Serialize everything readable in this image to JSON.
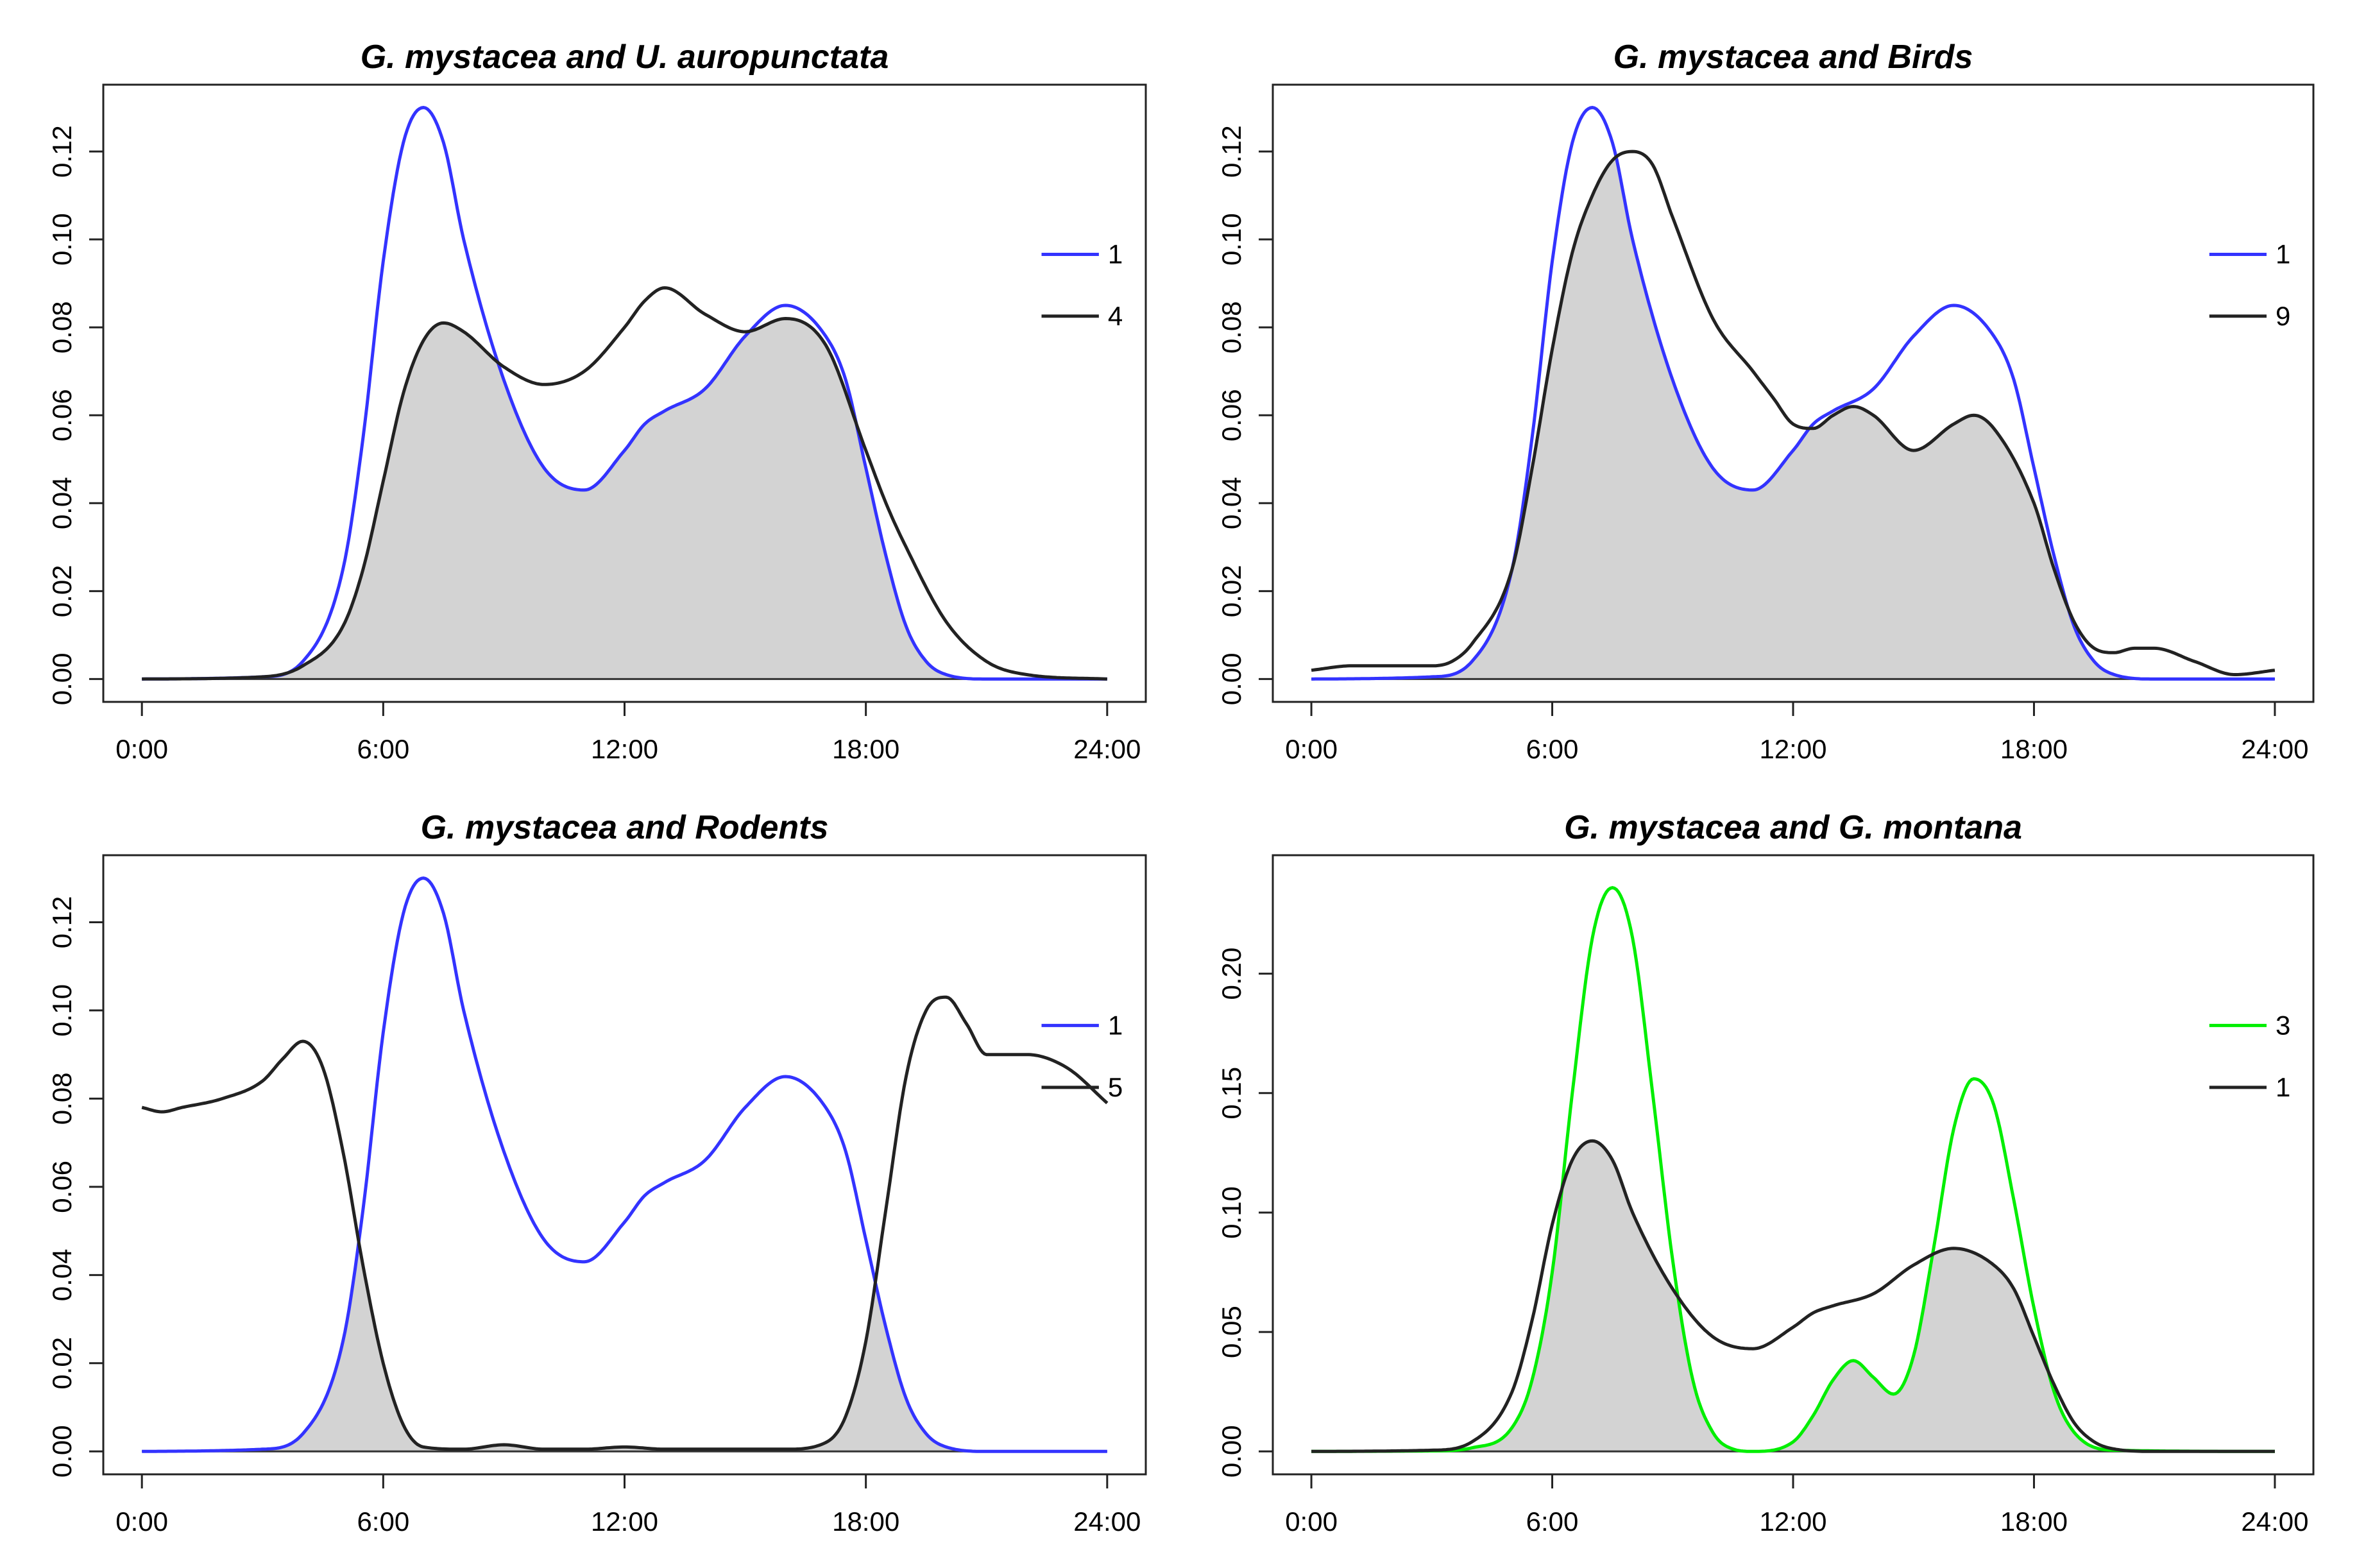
{
  "chart_data": [
    {
      "type": "area",
      "title": "G. mystacea and U. auropunctata",
      "xlabel": "",
      "ylabel": "",
      "xlim": [
        0,
        24
      ],
      "ylim": [
        0,
        0.13
      ],
      "xticks": [
        0,
        6,
        12,
        18,
        24
      ],
      "xtick_labels": [
        "0:00",
        "6:00",
        "12:00",
        "18:00",
        "24:00"
      ],
      "yticks": [
        0,
        0.02,
        0.04,
        0.06,
        0.08,
        0.1,
        0.12
      ],
      "ytick_labels": [
        "0.00",
        "0.02",
        "0.04",
        "0.06",
        "0.08",
        "0.10",
        "0.12"
      ],
      "legend_position": "right",
      "overlap_fill": "#d3d3d3",
      "series": [
        {
          "name": "1",
          "color": "#3333ff",
          "x": [
            0,
            3,
            4,
            5,
            5.5,
            6,
            6.5,
            7,
            7.5,
            8,
            9,
            10,
            11,
            12,
            12.5,
            13,
            14,
            15,
            16,
            17,
            17.5,
            18,
            18.5,
            19,
            19.5,
            20,
            21,
            24
          ],
          "y": [
            0,
            0.0005,
            0.004,
            0.025,
            0.055,
            0.095,
            0.122,
            0.13,
            0.122,
            0.1,
            0.068,
            0.048,
            0.043,
            0.052,
            0.058,
            0.061,
            0.066,
            0.078,
            0.085,
            0.078,
            0.068,
            0.048,
            0.028,
            0.012,
            0.004,
            0.001,
            0,
            0
          ]
        },
        {
          "name": "4",
          "color": "#222222",
          "x": [
            0,
            3,
            4,
            5,
            5.5,
            6,
            6.5,
            7,
            7.5,
            8,
            9,
            10,
            11,
            12,
            12.5,
            13,
            14,
            15,
            16,
            17,
            18,
            18.5,
            19,
            20,
            21,
            22,
            24
          ],
          "y": [
            0,
            0.0005,
            0.003,
            0.012,
            0.025,
            0.045,
            0.065,
            0.077,
            0.081,
            0.079,
            0.071,
            0.067,
            0.07,
            0.08,
            0.086,
            0.089,
            0.083,
            0.079,
            0.082,
            0.076,
            0.052,
            0.04,
            0.03,
            0.013,
            0.004,
            0.001,
            0
          ]
        }
      ]
    },
    {
      "type": "area",
      "title": "G. mystacea and Birds",
      "xlabel": "",
      "ylabel": "",
      "xlim": [
        0,
        24
      ],
      "ylim": [
        0,
        0.13
      ],
      "xticks": [
        0,
        6,
        12,
        18,
        24
      ],
      "xtick_labels": [
        "0:00",
        "6:00",
        "12:00",
        "18:00",
        "24:00"
      ],
      "yticks": [
        0,
        0.02,
        0.04,
        0.06,
        0.08,
        0.1,
        0.12
      ],
      "ytick_labels": [
        "0.00",
        "0.02",
        "0.04",
        "0.06",
        "0.08",
        "0.10",
        "0.12"
      ],
      "legend_position": "right",
      "overlap_fill": "#d3d3d3",
      "series": [
        {
          "name": "1",
          "color": "#3333ff",
          "x": [
            0,
            3,
            4,
            5,
            5.5,
            6,
            6.5,
            7,
            7.5,
            8,
            9,
            10,
            11,
            12,
            12.5,
            13,
            14,
            15,
            16,
            17,
            17.5,
            18,
            18.5,
            19,
            19.5,
            20,
            21,
            24
          ],
          "y": [
            0,
            0.0005,
            0.004,
            0.025,
            0.055,
            0.095,
            0.122,
            0.13,
            0.122,
            0.1,
            0.068,
            0.048,
            0.043,
            0.052,
            0.058,
            0.061,
            0.066,
            0.078,
            0.085,
            0.078,
            0.068,
            0.048,
            0.028,
            0.012,
            0.004,
            0.001,
            0,
            0
          ]
        },
        {
          "name": "9",
          "color": "#222222",
          "x": [
            0,
            1,
            1.5,
            2,
            3,
            3.5,
            4,
            5,
            5.5,
            6,
            6.5,
            7,
            7.5,
            8,
            8.5,
            9,
            10,
            11,
            11.5,
            12,
            12.5,
            13,
            13.5,
            14,
            15,
            16,
            16.5,
            17,
            18,
            18.5,
            19,
            19.5,
            20,
            20.5,
            21,
            22,
            23,
            24
          ],
          "y": [
            0.002,
            0.003,
            0.003,
            0.003,
            0.003,
            0.004,
            0.008,
            0.025,
            0.048,
            0.075,
            0.097,
            0.11,
            0.118,
            0.12,
            0.117,
            0.105,
            0.082,
            0.07,
            0.064,
            0.058,
            0.057,
            0.06,
            0.062,
            0.06,
            0.052,
            0.058,
            0.06,
            0.057,
            0.04,
            0.025,
            0.013,
            0.007,
            0.006,
            0.007,
            0.007,
            0.004,
            0.001,
            0.002
          ]
        }
      ]
    },
    {
      "type": "area",
      "title": "G. mystacea and Rodents",
      "xlabel": "",
      "ylabel": "",
      "xlim": [
        0,
        24
      ],
      "ylim": [
        0,
        0.13
      ],
      "xticks": [
        0,
        6,
        12,
        18,
        24
      ],
      "xtick_labels": [
        "0:00",
        "6:00",
        "12:00",
        "18:00",
        "24:00"
      ],
      "yticks": [
        0,
        0.02,
        0.04,
        0.06,
        0.08,
        0.1,
        0.12
      ],
      "ytick_labels": [
        "0.00",
        "0.02",
        "0.04",
        "0.06",
        "0.08",
        "0.10",
        "0.12"
      ],
      "legend_position": "right",
      "overlap_fill": "#d3d3d3",
      "series": [
        {
          "name": "1",
          "color": "#3333ff",
          "x": [
            0,
            3,
            4,
            5,
            5.5,
            6,
            6.5,
            7,
            7.5,
            8,
            9,
            10,
            11,
            12,
            12.5,
            13,
            14,
            15,
            16,
            17,
            17.5,
            18,
            18.5,
            19,
            19.5,
            20,
            21,
            24
          ],
          "y": [
            0,
            0.0005,
            0.004,
            0.025,
            0.055,
            0.095,
            0.122,
            0.13,
            0.122,
            0.1,
            0.068,
            0.048,
            0.043,
            0.052,
            0.058,
            0.061,
            0.066,
            0.078,
            0.085,
            0.078,
            0.068,
            0.048,
            0.028,
            0.012,
            0.004,
            0.001,
            0,
            0
          ]
        },
        {
          "name": "5",
          "color": "#222222",
          "x": [
            0,
            0.5,
            1,
            2,
            3,
            3.5,
            4,
            4.5,
            5,
            5.5,
            6,
            6.5,
            7,
            8,
            9,
            10,
            11,
            12,
            13,
            14,
            15,
            16,
            17,
            17.5,
            18,
            18.5,
            19,
            19.5,
            20,
            20.5,
            21,
            22,
            23,
            24
          ],
          "y": [
            0.078,
            0.077,
            0.078,
            0.08,
            0.084,
            0.089,
            0.093,
            0.087,
            0.068,
            0.042,
            0.02,
            0.006,
            0.001,
            0.0005,
            0.0015,
            0.0005,
            0.0005,
            0.001,
            0.0005,
            0.0005,
            0.0005,
            0.0005,
            0.002,
            0.008,
            0.025,
            0.055,
            0.085,
            0.1,
            0.103,
            0.097,
            0.09,
            0.09,
            0.087,
            0.079
          ]
        }
      ]
    },
    {
      "type": "area",
      "title": "G. mystacea and G. montana",
      "xlabel": "",
      "ylabel": "",
      "xlim": [
        0,
        24
      ],
      "ylim": [
        0,
        0.24
      ],
      "xticks": [
        0,
        6,
        12,
        18,
        24
      ],
      "xtick_labels": [
        "0:00",
        "6:00",
        "12:00",
        "18:00",
        "24:00"
      ],
      "yticks": [
        0,
        0.05,
        0.1,
        0.15,
        0.2
      ],
      "ytick_labels": [
        "0.00",
        "0.05",
        "0.10",
        "0.15",
        "0.20"
      ],
      "legend_position": "right",
      "overlap_fill": "#d3d3d3",
      "series": [
        {
          "name": "3",
          "color": "#00ee00",
          "x": [
            0,
            3,
            4,
            5,
            5.5,
            6,
            6.5,
            7,
            7.5,
            8,
            8.5,
            9,
            9.5,
            10,
            10.5,
            11,
            12,
            12.5,
            13,
            13.5,
            14,
            14.5,
            15,
            15.5,
            16,
            16.5,
            17,
            17.5,
            18,
            18.5,
            19,
            20,
            24
          ],
          "y": [
            0,
            0.0002,
            0.0015,
            0.01,
            0.03,
            0.075,
            0.15,
            0.215,
            0.236,
            0.215,
            0.15,
            0.08,
            0.03,
            0.008,
            0.001,
            0,
            0.004,
            0.015,
            0.03,
            0.038,
            0.031,
            0.024,
            0.04,
            0.085,
            0.135,
            0.156,
            0.145,
            0.105,
            0.06,
            0.025,
            0.008,
            0.0005,
            0
          ]
        },
        {
          "name": "1",
          "color": "#222222",
          "x": [
            0,
            3,
            4,
            5,
            5.5,
            6,
            6.5,
            7,
            7.5,
            8,
            9,
            10,
            11,
            12,
            12.5,
            13,
            14,
            15,
            16,
            17,
            17.5,
            18,
            18.5,
            19,
            19.5,
            20,
            21,
            24
          ],
          "y": [
            0,
            0.0005,
            0.004,
            0.025,
            0.055,
            0.095,
            0.122,
            0.13,
            0.122,
            0.1,
            0.068,
            0.048,
            0.043,
            0.052,
            0.058,
            0.061,
            0.066,
            0.078,
            0.085,
            0.078,
            0.068,
            0.048,
            0.028,
            0.012,
            0.004,
            0.001,
            0,
            0
          ]
        }
      ]
    }
  ]
}
